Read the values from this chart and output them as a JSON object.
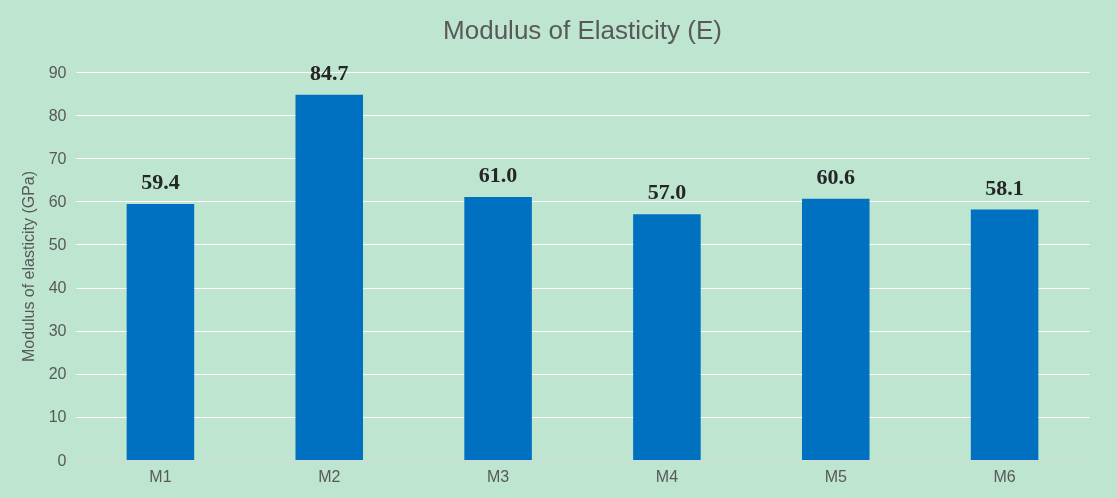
{
  "chart_data": {
    "type": "bar",
    "title": "Modulus of Elasticity (E)",
    "ylabel": "Modulus of elasticity (GPa)",
    "categories": [
      "M1",
      "M2",
      "M3",
      "M4",
      "M5",
      "M6"
    ],
    "values": [
      59.4,
      84.7,
      61.0,
      57.0,
      60.6,
      58.1
    ],
    "value_labels": [
      "59.4",
      "84.7",
      "61.0",
      "57.0",
      "60.6",
      "58.1"
    ],
    "color": "#0070c0",
    "ylim": [
      0,
      90
    ],
    "yticks": [
      0,
      10,
      20,
      30,
      40,
      50,
      60,
      70,
      80,
      90
    ],
    "grid": "y"
  }
}
